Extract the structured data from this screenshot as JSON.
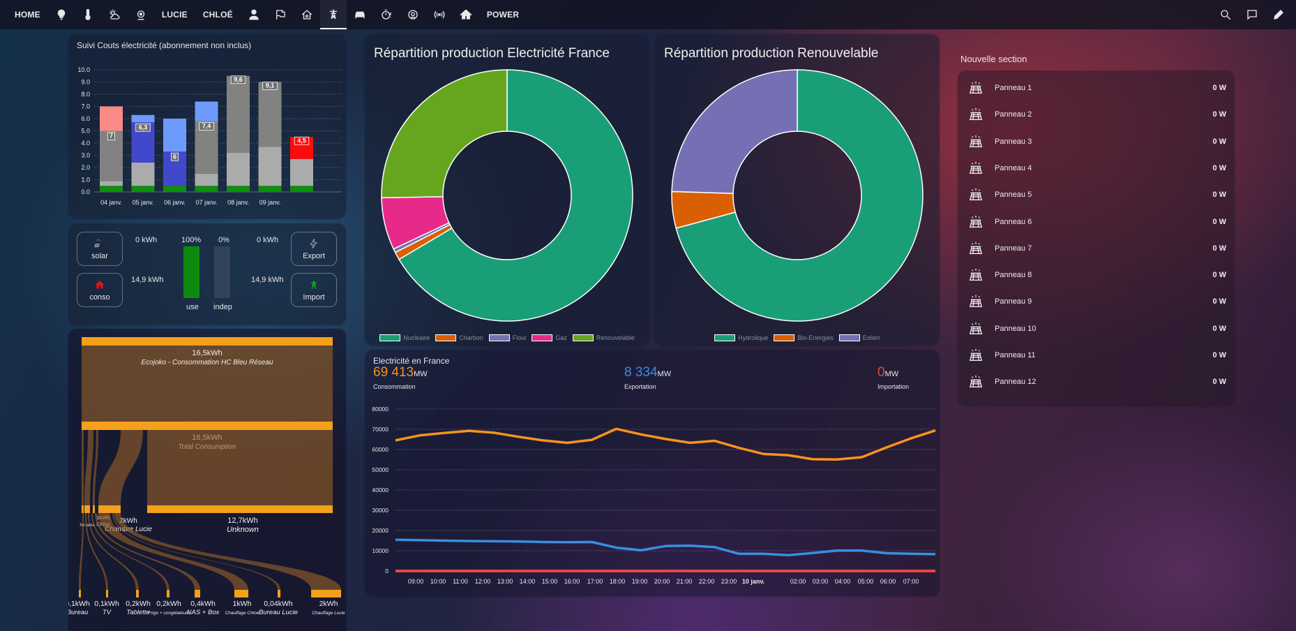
{
  "nav": {
    "tabs": [
      {
        "key": "home",
        "type": "text",
        "label": "HOME"
      },
      {
        "key": "bulb",
        "type": "icon",
        "icon": "lightbulb-icon"
      },
      {
        "key": "thermo",
        "type": "icon",
        "icon": "thermometer-icon"
      },
      {
        "key": "weather",
        "type": "icon",
        "icon": "weather-icon"
      },
      {
        "key": "alarm",
        "type": "icon",
        "icon": "alarm-icon"
      },
      {
        "key": "lucie",
        "type": "text",
        "label": "LUCIE"
      },
      {
        "key": "chloe",
        "type": "text",
        "label": "CHLOÉ"
      },
      {
        "key": "person",
        "type": "icon",
        "icon": "person-icon"
      },
      {
        "key": "flag",
        "type": "icon",
        "icon": "flag-icon"
      },
      {
        "key": "housegear",
        "type": "icon",
        "icon": "home-gear-icon"
      },
      {
        "key": "pylon",
        "type": "icon",
        "icon": "transmission-tower-icon",
        "active": true
      },
      {
        "key": "car",
        "type": "icon",
        "icon": "car-icon"
      },
      {
        "key": "timer",
        "type": "icon",
        "icon": "timer-alert-icon"
      },
      {
        "key": "robot",
        "type": "icon",
        "icon": "robot-vacuum-icon"
      },
      {
        "key": "signal",
        "type": "icon",
        "icon": "wifi-signal-icon"
      },
      {
        "key": "house",
        "type": "icon",
        "icon": "home-icon"
      },
      {
        "key": "power",
        "type": "text",
        "label": "POWER"
      }
    ],
    "actions": [
      {
        "key": "search",
        "icon": "search-icon"
      },
      {
        "key": "assist",
        "icon": "assist-chat-icon"
      },
      {
        "key": "edit",
        "icon": "pencil-icon"
      }
    ]
  },
  "cost_card": {
    "title": "Suivi Couts électricité (abonnement non inclus)",
    "chart_data": {
      "type": "bar",
      "stacked": true,
      "categories": [
        "04 janv.",
        "05 janv.",
        "06 janv.",
        "07 janv.",
        "08 janv.",
        "09 janv.",
        ""
      ],
      "series": [
        {
          "values": [
            0.5,
            0.5,
            0.5,
            0.5,
            0.5,
            0.5,
            0.5
          ],
          "color": "#0e8f0e"
        },
        {
          "values": [
            0.4,
            1.9,
            0,
            1,
            2.7,
            3.2,
            2.2
          ],
          "color": "#ababab"
        },
        {
          "values": [
            4.1,
            0,
            0,
            4.3,
            6.3,
            5.3,
            0
          ],
          "color": "#828282"
        },
        {
          "values": [
            0,
            3.3,
            2.8,
            0,
            0,
            0,
            0
          ],
          "color": "#4048cc"
        },
        {
          "values": [
            0,
            0.6,
            2.7,
            1.6,
            0,
            0,
            0
          ],
          "color": "#6e9bfb"
        },
        {
          "values": [
            2,
            0,
            0,
            0,
            0,
            0,
            0
          ],
          "color": "#f98a85"
        },
        {
          "values": [
            0,
            0,
            0,
            0,
            0,
            0,
            1.8
          ],
          "color": "#fb0c0c"
        }
      ],
      "data_labels": [
        "7",
        "6,3",
        "6",
        "7,4",
        "9,6",
        "9,1",
        "4,5"
      ],
      "y_ticks": [
        "0.0",
        "1.0",
        "2.0",
        "3.0",
        "4.0",
        "5.0",
        "6.0",
        "7.0",
        "8.0",
        "9.0",
        "10.0"
      ],
      "ylim": [
        0,
        10
      ],
      "grid": true
    }
  },
  "energy_card": {
    "solar": {
      "label": "solar",
      "value": "0 kWh",
      "icon": "solar-power-icon"
    },
    "conso": {
      "label": "conso",
      "value": "14,9 kWh",
      "icon": "home-icon",
      "icon_color": "#e01414"
    },
    "use": {
      "label": "use",
      "percent": "100%",
      "fill": 1.0,
      "color": "#0d8a0d"
    },
    "indep": {
      "label": "indep",
      "percent": "0%",
      "fill": 0.0
    },
    "export": {
      "label": "Export",
      "value": "0 kWh",
      "icon": "flash-icon"
    },
    "import": {
      "label": "Import",
      "value": "14,9 kWh",
      "icon": "transmission-tower-icon",
      "icon_color": "#1db31d"
    }
  },
  "sankey_card": {
    "top": {
      "value": "16,5kWh",
      "label": "Ecojoko - Consommation HC Bleu Réseau"
    },
    "mid": {
      "value": "16,5kWh",
      "label": "Total Consumption"
    },
    "sections": [
      {
        "key": "bureau",
        "value": "0,1kWh",
        "label": "NAS + Box"
      },
      {
        "key": "noarea",
        "value": "",
        "label": "No area"
      },
      {
        "key": "chloe",
        "value": "1kWh",
        "label": "Chloé"
      },
      {
        "key": "lucie",
        "value": "2kWh",
        "label": "Chambre Lucie"
      },
      {
        "key": "unknown",
        "value": "12,7kWh",
        "label": "Unknown"
      }
    ],
    "leaves": [
      {
        "value": "0,1kWh",
        "label": "Bureau"
      },
      {
        "value": "0,1kWh",
        "label": "TV"
      },
      {
        "value": "0,2kWh",
        "label": "Tablette"
      },
      {
        "value": "0,2kWh",
        "label": "Frigo + congélateurs"
      },
      {
        "value": "0,4kWh",
        "label": "NAS + Box"
      },
      {
        "value": "1kWh",
        "label": "Chauffage Chloé"
      },
      {
        "value": "0,04kWh",
        "label": "Bureau Lucie"
      },
      {
        "value": "2kWh",
        "label": "Chauffage Lucie"
      }
    ]
  },
  "france_card": {
    "title": "Répartition production Electricité France",
    "chart_data": {
      "type": "pie",
      "donut": true,
      "labels": [
        "Nucléaire",
        "Charbon",
        "Fioul",
        "Gaz",
        "Renouvelable"
      ],
      "values": [
        66.5,
        1.0,
        0.5,
        6.7,
        25.3
      ],
      "colors": [
        "#1a9e78",
        "#d95f02",
        "#7570b3",
        "#e7298a",
        "#66a61e"
      ],
      "legend": "bottom"
    }
  },
  "renew_card": {
    "title": "Répartition production Renouvelable",
    "chart_data": {
      "type": "pie",
      "donut": true,
      "labels": [
        "Hydrolique",
        "Bio-Energies",
        "Eolien"
      ],
      "values": [
        70.8,
        4.7,
        24.5
      ],
      "colors": [
        "#1a9e78",
        "#d95f02",
        "#7570b3"
      ],
      "legend": "bottom"
    }
  },
  "elec_card": {
    "title": "Electricité en France",
    "stats": [
      {
        "key": "conso",
        "value": "69 413",
        "unit": "MW",
        "label": "Consommation",
        "color": "#f7931e"
      },
      {
        "key": "export",
        "value": "8 334",
        "unit": "MW",
        "label": "Exportation",
        "color": "#3a8ee0"
      },
      {
        "key": "import",
        "value": "0",
        "unit": "MW",
        "label": "Importation",
        "color": "#e84545"
      }
    ],
    "chart_data": {
      "type": "line",
      "x_labels": [
        "09:00",
        "10:00",
        "11:00",
        "12:00",
        "13:00",
        "14:00",
        "15:00",
        "16:00",
        "17:00",
        "18:00",
        "19:00",
        "20:00",
        "21:00",
        "22:00",
        "23:00",
        "10 janv.",
        "02:00",
        "03:00",
        "04:00",
        "05:00",
        "06:00",
        "07:00"
      ],
      "y_ticks": [
        "0",
        "10000",
        "20000",
        "30000",
        "40000",
        "50000",
        "60000",
        "70000",
        "80000"
      ],
      "ylim": [
        0,
        80000
      ],
      "grid": true,
      "series": [
        {
          "name": "Consommation",
          "color": "#f7931e",
          "values": [
            64500,
            67000,
            68200,
            69200,
            68300,
            66300,
            64500,
            63300,
            64800,
            70200,
            67500,
            65200,
            63300,
            64300,
            60800,
            57800,
            57200,
            55200,
            55100,
            56200,
            61000,
            65500,
            69400
          ]
        },
        {
          "name": "Exportation",
          "color": "#3a8ee0",
          "values": [
            15400,
            15200,
            15000,
            14800,
            14700,
            14600,
            14300,
            14200,
            14300,
            11500,
            10200,
            12300,
            12500,
            11800,
            8500,
            8500,
            7800,
            8900,
            10100,
            10100,
            8800,
            8500,
            8300
          ]
        },
        {
          "name": "Importation",
          "color": "#e84545",
          "values": [
            0,
            0,
            0,
            0,
            0,
            0,
            0,
            0,
            0,
            0,
            0,
            0,
            0,
            0,
            0,
            0,
            0,
            0,
            0,
            0,
            0,
            0,
            0
          ]
        }
      ]
    }
  },
  "panels_card": {
    "title": "Nouvelle section",
    "rows": [
      {
        "name": "Panneau 1",
        "power": "0 W"
      },
      {
        "name": "Panneau 2",
        "power": "0 W"
      },
      {
        "name": "Panneau 3",
        "power": "0 W"
      },
      {
        "name": "Panneau 4",
        "power": "0 W"
      },
      {
        "name": "Panneau 5",
        "power": "0 W"
      },
      {
        "name": "Panneau 6",
        "power": "0 W"
      },
      {
        "name": "Panneau 7",
        "power": "0 W"
      },
      {
        "name": "Panneau 8",
        "power": "0 W"
      },
      {
        "name": "Panneau 9",
        "power": "0 W"
      },
      {
        "name": "Panneau 10",
        "power": "0 W"
      },
      {
        "name": "Panneau 11",
        "power": "0 W"
      },
      {
        "name": "Panneau 12",
        "power": "0 W"
      }
    ]
  }
}
